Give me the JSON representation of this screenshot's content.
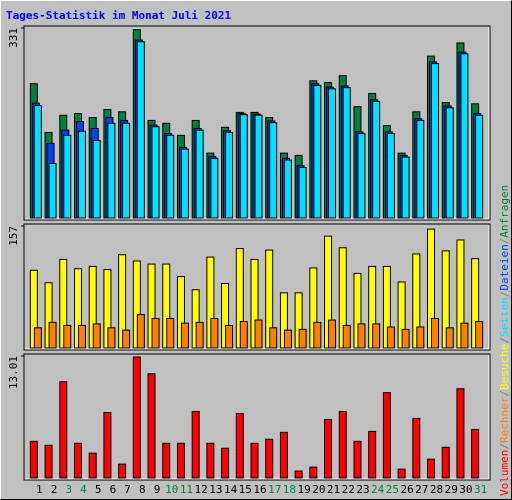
{
  "title": "Tages-Statistik im Monat Juli 2021",
  "legend_separator": "/",
  "chart_data": [
    {
      "type": "bar",
      "ylim": [
        0,
        331
      ],
      "yticks": [
        331
      ],
      "series": [
        {
          "name": "Anfragen",
          "color": "#008040",
          "values": [
            234,
            149,
            179,
            182,
            175,
            189,
            185,
            328,
            170,
            165,
            144,
            170,
            113,
            158,
            184,
            184,
            175,
            113,
            109,
            239,
            236,
            248,
            194,
            217,
            161,
            113,
            185,
            282,
            201,
            305,
            199
          ]
        },
        {
          "name": "Dateien",
          "color": "#0040FF",
          "values": [
            200,
            130,
            153,
            168,
            156,
            175,
            170,
            310,
            162,
            147,
            123,
            156,
            107,
            152,
            182,
            181,
            169,
            104,
            91,
            234,
            228,
            230,
            150,
            206,
            150,
            109,
            173,
            272,
            195,
            289,
            182
          ]
        },
        {
          "name": "Seiten",
          "color": "#00E0FF",
          "values": [
            196,
            95,
            144,
            151,
            135,
            165,
            165,
            307,
            159,
            144,
            120,
            153,
            104,
            149,
            180,
            179,
            166,
            101,
            88,
            231,
            225,
            227,
            147,
            203,
            147,
            106,
            170,
            269,
            192,
            286,
            179
          ]
        }
      ]
    },
    {
      "type": "bar",
      "ylim": [
        0,
        157
      ],
      "yticks": [
        157
      ],
      "series": [
        {
          "name": "Besuche",
          "color": "#FFFF00",
          "values": [
            100,
            84,
            114,
            102,
            105,
            101,
            120,
            112,
            108,
            108,
            92,
            75,
            117,
            83,
            128,
            114,
            126,
            71,
            71,
            103,
            144,
            129,
            96,
            105,
            105,
            85,
            121,
            153,
            125,
            139,
            115
          ]
        },
        {
          "name": "Rechner",
          "color": "#FF8000",
          "values": [
            26,
            33,
            29,
            29,
            31,
            26,
            23,
            43,
            38,
            38,
            32,
            33,
            38,
            29,
            34,
            36,
            26,
            23,
            24,
            33,
            36,
            29,
            31,
            31,
            27,
            24,
            27,
            38,
            26,
            32,
            34
          ]
        }
      ]
    },
    {
      "type": "bar",
      "ylim": [
        0,
        13.01
      ],
      "yticks": [
        13.01
      ],
      "categories": [
        "1",
        "2",
        "3",
        "4",
        "5",
        "6",
        "7",
        "8",
        "9",
        "10",
        "11",
        "12",
        "13",
        "14",
        "15",
        "16",
        "17",
        "18",
        "19",
        "20",
        "21",
        "22",
        "23",
        "24",
        "25",
        "26",
        "27",
        "28",
        "29",
        "30",
        "31"
      ],
      "category_colors": [
        "#000000",
        "#000000",
        "#008040",
        "#008040",
        "#000000",
        "#000000",
        "#000000",
        "#000000",
        "#000000",
        "#008040",
        "#008040",
        "#000000",
        "#000000",
        "#000000",
        "#000000",
        "#000000",
        "#008040",
        "#008040",
        "#000000",
        "#000000",
        "#000000",
        "#000000",
        "#000000",
        "#008040",
        "#008040",
        "#000000",
        "#000000",
        "#000000",
        "#000000",
        "#000000",
        "#008040"
      ],
      "series": [
        {
          "name": "Volumen",
          "color": "#FF0000",
          "values": [
            3.91,
            3.49,
            10.26,
            3.7,
            2.65,
            6.98,
            1.48,
            12.91,
            11.11,
            3.7,
            3.7,
            7.09,
            3.7,
            3.17,
            6.88,
            3.7,
            4.13,
            4.87,
            0.74,
            1.16,
            6.24,
            7.09,
            3.91,
            4.97,
            9.1,
            0.95,
            6.35,
            2.01,
            3.28,
            9.52,
            5.18
          ]
        }
      ]
    }
  ]
}
